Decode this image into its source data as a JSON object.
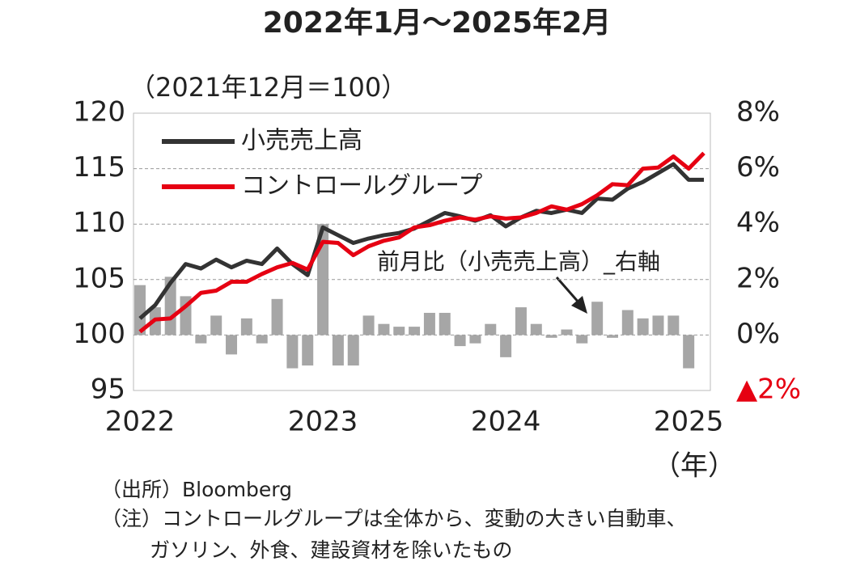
{
  "chart_data": {
    "type": "line",
    "title": "2022年1月～2025年2月",
    "y_label": "（2021年12月＝100）",
    "x_label": "（年）",
    "annotation": "前月比（小売売上高）_右軸",
    "categories": [
      "2022",
      null,
      null,
      null,
      null,
      null,
      null,
      null,
      null,
      null,
      null,
      null,
      "2023",
      null,
      null,
      null,
      null,
      null,
      null,
      null,
      null,
      null,
      null,
      null,
      "2024",
      null,
      null,
      null,
      null,
      null,
      null,
      null,
      null,
      null,
      null,
      null,
      "2025",
      null
    ],
    "series": [
      {
        "name": "小売売上高",
        "type": "line",
        "color": "#333333",
        "values": [
          101.5,
          102.7,
          104.7,
          106.4,
          106.0,
          106.8,
          106.1,
          106.7,
          106.4,
          107.8,
          106.4,
          105.4,
          109.7,
          109.0,
          108.3,
          108.7,
          109.0,
          109.2,
          109.6,
          110.3,
          111.0,
          110.7,
          110.3,
          110.8,
          109.8,
          110.6,
          111.2,
          111.0,
          111.3,
          111.0,
          112.3,
          112.2,
          113.2,
          113.8,
          114.6,
          115.4,
          114.0,
          114.0
        ]
      },
      {
        "name": "コントロールグループ",
        "type": "line",
        "color": "#e60012",
        "values": [
          100.3,
          101.4,
          101.5,
          102.6,
          103.8,
          104.0,
          104.8,
          104.8,
          105.5,
          106.1,
          106.5,
          105.9,
          108.4,
          108.3,
          107.2,
          108.0,
          108.5,
          108.8,
          109.7,
          109.9,
          110.3,
          110.6,
          110.4,
          110.7,
          110.5,
          110.6,
          111.0,
          111.6,
          111.3,
          111.8,
          112.6,
          113.6,
          113.5,
          115.0,
          115.1,
          116.1,
          115.0,
          116.4
        ]
      },
      {
        "type": "bar",
        "axis": "y2",
        "color": "#a6a6a6",
        "values": [
          1.8,
          1.0,
          2.1,
          1.4,
          -0.3,
          0.7,
          -0.7,
          0.6,
          -0.3,
          1.3,
          -1.2,
          -1.1,
          4.0,
          -1.1,
          -1.1,
          0.7,
          0.4,
          0.3,
          0.3,
          0.8,
          0.8,
          -0.4,
          -0.3,
          0.4,
          -0.8,
          1.0,
          0.4,
          -0.1,
          0.2,
          -0.3,
          1.2,
          -0.1,
          0.9,
          0.6,
          0.7,
          0.7,
          -1.2,
          null
        ]
      }
    ],
    "ylim": [
      95,
      120
    ],
    "yticks": [
      95,
      100,
      105,
      110,
      115,
      120
    ],
    "y2lim": [
      -2,
      8
    ],
    "y2ticks": [
      {
        "value": -2,
        "label": "▲2%",
        "color": "#e60012"
      },
      {
        "value": 0,
        "label": "0%"
      },
      {
        "value": 2,
        "label": "2%"
      },
      {
        "value": 4,
        "label": "4%"
      },
      {
        "value": 6,
        "label": "6%"
      },
      {
        "value": 8,
        "label": "8%"
      }
    ],
    "grid": true,
    "legend": "upper left"
  },
  "notes": [
    "（出所）Bloomberg",
    "（注）コントロールグループは全体から、変動の大きい自動車、",
    "ガソリン、外食、建設資材を除いたもの"
  ]
}
